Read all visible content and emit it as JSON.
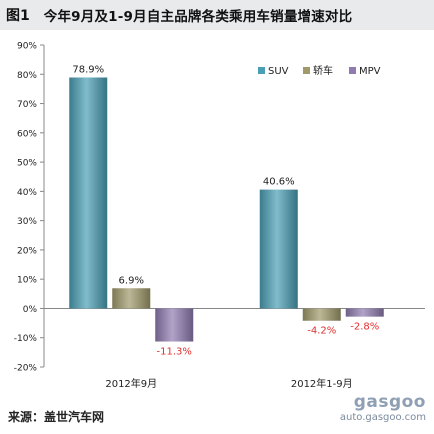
{
  "title": {
    "figure_num": "图1",
    "text": "今年9月及1-9月自主品牌各类乘用车销量增速对比"
  },
  "source": "来源：盖世汽车网",
  "watermark": {
    "logo": "gasgoo",
    "url": "auto.gasgoo.com"
  },
  "chart_data": {
    "type": "bar",
    "title": "今年9月及1-9月自主品牌各类乘用车销量增速对比",
    "xlabel": "",
    "ylabel": "",
    "categories": [
      "2012年9月",
      "2012年1-9月"
    ],
    "series": [
      {
        "name": "SUV",
        "values": [
          78.9,
          40.6
        ],
        "labels": [
          "78.9%",
          "40.6%"
        ],
        "color": "#4a9fb5"
      },
      {
        "name": "轿车",
        "values": [
          6.9,
          -4.2
        ],
        "labels": [
          "6.9%",
          "-4.2%"
        ],
        "color": "#a09a6a"
      },
      {
        "name": "MPV",
        "values": [
          -11.3,
          -2.8
        ],
        "labels": [
          "-11.3%",
          "-2.8%"
        ],
        "color": "#8f7bb0"
      }
    ],
    "ylim": [
      -20,
      90
    ],
    "yticks": [
      "90%",
      "80%",
      "70%",
      "60%",
      "50%",
      "40%",
      "30%",
      "20%",
      "10%",
      "0%",
      "-10%",
      "-20%"
    ],
    "ytick_values": [
      90,
      80,
      70,
      60,
      50,
      40,
      30,
      20,
      10,
      0,
      -10,
      -20
    ],
    "grid": false,
    "legend_position": "top-right",
    "negative_label_color": "#e03030",
    "positive_label_color": "#222222"
  }
}
